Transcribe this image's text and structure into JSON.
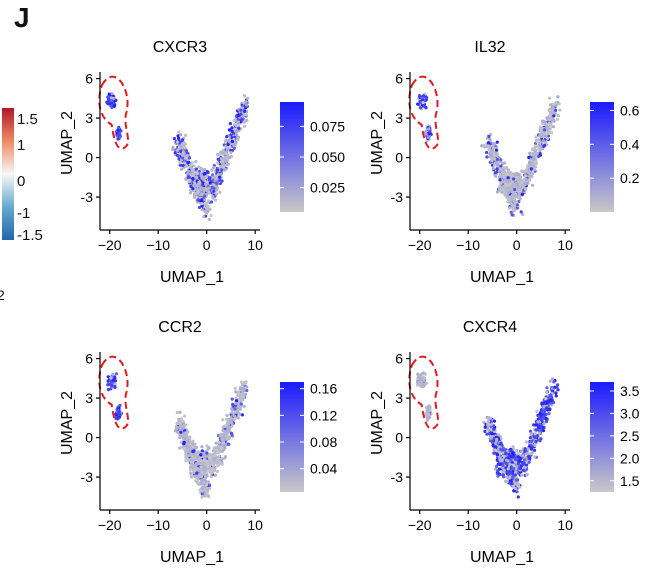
{
  "panel_letter": "J",
  "side_legend": {
    "ticks": [
      "1.5",
      "1",
      "0",
      "-1",
      "-1.5"
    ],
    "stray_text": "2"
  },
  "chart_data": [
    {
      "type": "scatter",
      "title": "CXCR3",
      "xlabel": "UMAP_1",
      "ylabel": "UMAP_2",
      "xticks": [
        "−20",
        "−10",
        "0",
        "10"
      ],
      "yticks": [
        "6",
        "3",
        "0",
        "-3"
      ],
      "xlim": [
        -22,
        11
      ],
      "ylim": [
        -5.5,
        6.5
      ],
      "colorbar": {
        "ticks": [
          "0.075",
          "0.050",
          "0.025"
        ],
        "min": 0.005,
        "max": 0.095,
        "colors": [
          "#c8c8c8",
          "#1a1aff"
        ]
      },
      "expression": {
        "cluster_left": 0.85,
        "body": 0.35,
        "right": 0.4
      }
    },
    {
      "type": "scatter",
      "title": "IL32",
      "xlabel": "UMAP_1",
      "ylabel": "UMAP_2",
      "xticks": [
        "−20",
        "−10",
        "0",
        "10"
      ],
      "yticks": [
        "6",
        "3",
        "0",
        "-3"
      ],
      "xlim": [
        -22,
        11
      ],
      "ylim": [
        -5.5,
        6.5
      ],
      "colorbar": {
        "ticks": [
          "0.6",
          "0.4",
          "0.2"
        ],
        "min": 0.0,
        "max": 0.65,
        "colors": [
          "#c8c8c8",
          "#1a1aff"
        ]
      },
      "expression": {
        "cluster_left": 0.6,
        "body": 0.12,
        "right": 0.15
      }
    },
    {
      "type": "scatter",
      "title": "CCR2",
      "xlabel": "UMAP_1",
      "ylabel": "UMAP_2",
      "xticks": [
        "−20",
        "−10",
        "0",
        "10"
      ],
      "yticks": [
        "6",
        "3",
        "0",
        "-3"
      ],
      "xlim": [
        -22,
        11
      ],
      "ylim": [
        -5.5,
        6.5
      ],
      "colorbar": {
        "ticks": [
          "0.16",
          "0.12",
          "0.08",
          "0.04"
        ],
        "min": 0.005,
        "max": 0.17,
        "colors": [
          "#c8c8c8",
          "#1a1aff"
        ]
      },
      "expression": {
        "cluster_left": 0.75,
        "body": 0.12,
        "right": 0.2
      }
    },
    {
      "type": "scatter",
      "title": "CXCR4",
      "xlabel": "UMAP_1",
      "ylabel": "UMAP_2",
      "xticks": [
        "−20",
        "−10",
        "0",
        "10"
      ],
      "yticks": [
        "6",
        "3",
        "0",
        "-3"
      ],
      "xlim": [
        -22,
        11
      ],
      "ylim": [
        -5.5,
        6.5
      ],
      "colorbar": {
        "ticks": [
          "3.5",
          "3.0",
          "2.5",
          "2.0",
          "1.5"
        ],
        "min": 1.25,
        "max": 3.7,
        "colors": [
          "#c8c8c8",
          "#1a1aff"
        ]
      },
      "expression": {
        "cluster_left": 0.05,
        "body": 0.55,
        "right": 0.85
      }
    }
  ]
}
